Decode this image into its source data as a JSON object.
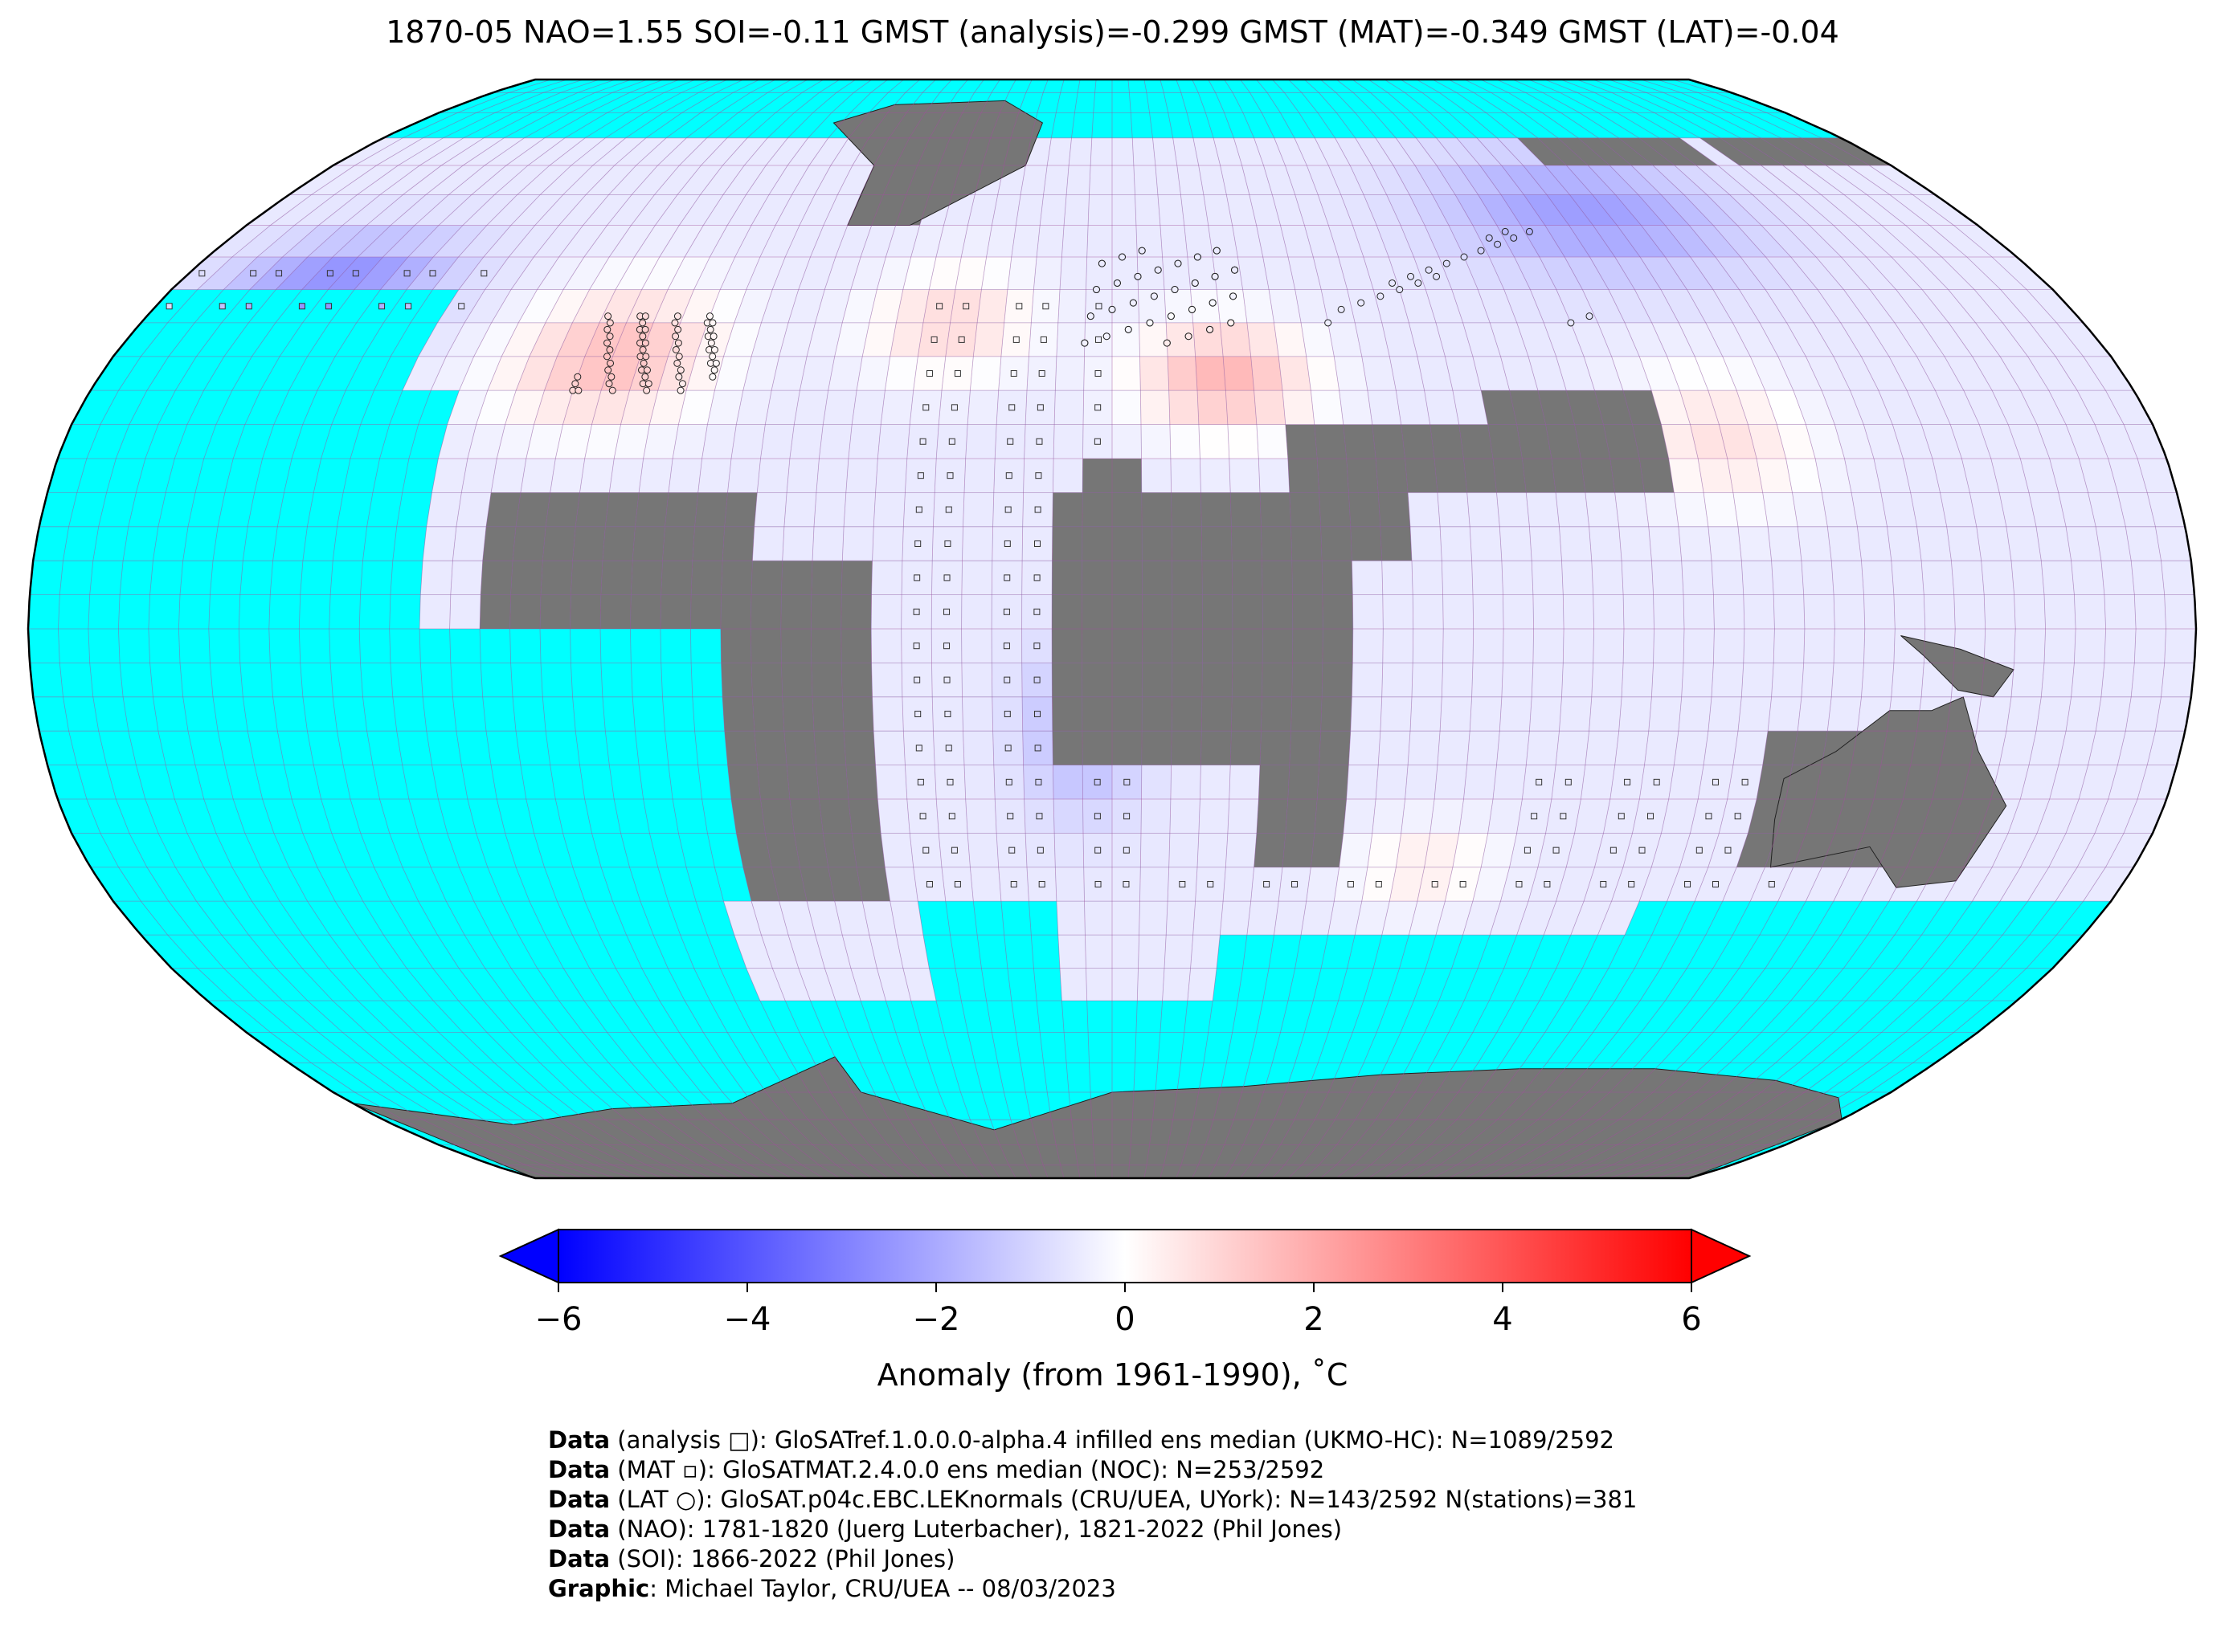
{
  "title": "1870-05 NAO=1.55 SOI=-0.11 GMST (analysis)=-0.299 GMST (MAT)=-0.349 GMST (LAT)=-0.04",
  "colorbar": {
    "ticks": [
      "−6",
      "−4",
      "−2",
      "0",
      "2",
      "4",
      "6"
    ],
    "tick_values": [
      -6,
      -4,
      -2,
      0,
      2,
      4,
      6
    ],
    "label": "Anomaly (from 1961-1990), ˚C",
    "colors": {
      "min": "#0000ff",
      "mid": "#ffffff",
      "max": "#ff0000"
    }
  },
  "map": {
    "projection": "robinson",
    "ocean_no_data_color": "#00ffff",
    "land_no_data_color": "#767676",
    "grid_color": "#a0509c"
  },
  "credits": [
    {
      "bold": "Data",
      "rest": " (analysis □): GloSATref.1.0.0.0-alpha.4 infilled ens median (UKMO-HC): N=1089/2592"
    },
    {
      "bold": "Data",
      "rest": " (MAT ▫): GloSATMAT.2.4.0.0 ens median (NOC): N=253/2592"
    },
    {
      "bold": "Data",
      "rest": " (LAT ○): GloSAT.p04c.EBC.LEKnormals (CRU/UEA, UYork): N=143/2592 N(stations)=381"
    },
    {
      "bold": "Data",
      "rest": " (NAO): 1781-1820 (Juerg Luterbacher), 1821-2022 (Phil Jones)"
    },
    {
      "bold": "Data",
      "rest": " (SOI): 1866-2022 (Phil Jones)"
    },
    {
      "bold": "Graphic",
      "rest": ": Michael Taylor, CRU/UEA -- 08/03/2023"
    }
  ]
}
